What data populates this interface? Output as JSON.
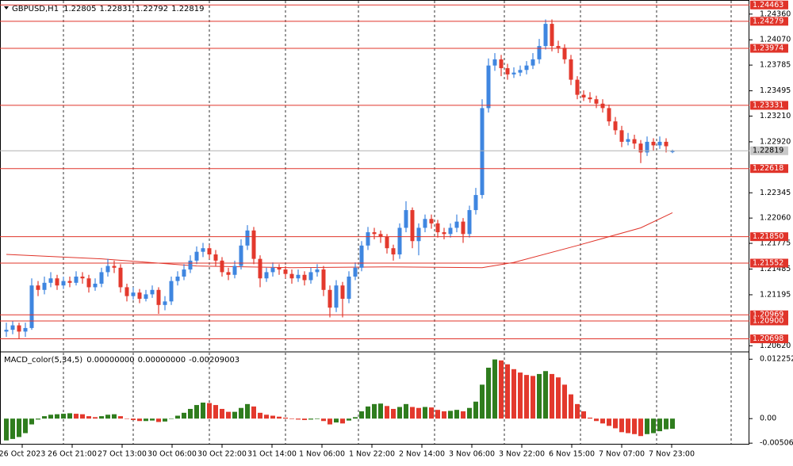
{
  "chart_data": [
    {
      "type": "candlestick",
      "symbol": "GBPUSD,H1",
      "up_color": "#3f86e0",
      "down_color": "#e3392d",
      "xlim": [
        -1,
        117.125
      ],
      "ylim": [
        1.2056,
        1.2451
      ],
      "xticks": [
        {
          "value": 2.5,
          "label": "26 Oct 2023"
        },
        {
          "value": 10.375,
          "label": "26 Oct 21:00"
        },
        {
          "value": 18.25,
          "label": "27 Oct 13:00"
        },
        {
          "value": 26.125,
          "label": "30 Oct 06:00"
        },
        {
          "value": 34,
          "label": "30 Oct 22:00"
        },
        {
          "value": 41.875,
          "label": "31 Oct 14:00"
        },
        {
          "value": 49.75,
          "label": "1 Nov 06:00"
        },
        {
          "value": 57.625,
          "label": "1 Nov 22:00"
        },
        {
          "value": 65.5,
          "label": "2 Nov 14:00"
        },
        {
          "value": 73.375,
          "label": "3 Nov 06:00"
        },
        {
          "value": 81.25,
          "label": "3 Nov 22:00"
        },
        {
          "value": 89.125,
          "label": "6 Nov 15:00"
        },
        {
          "value": 97,
          "label": "7 Nov 07:00"
        },
        {
          "value": 104.875,
          "label": "7 Nov 23:00"
        }
      ],
      "xgrid": [
        9,
        20,
        32,
        44,
        55.5,
        67.5,
        78.5,
        90.5,
        102.5,
        114.25
      ],
      "yticks": [
        {
          "value": 1.2436,
          "label": "1.24360"
        },
        {
          "value": 1.2407,
          "label": "1.24070"
        },
        1.23785,
        1.23495,
        {
          "value": 1.2321,
          "label": "1.23210"
        },
        {
          "value": 1.2292,
          "label": "1.22920"
        },
        1.22345,
        {
          "value": 1.2206,
          "label": "1.22060"
        },
        1.21775,
        1.21485,
        1.21195,
        {
          "value": 1.2062,
          "label": "1.20620"
        }
      ],
      "levels": [
        1.24463,
        1.24279,
        1.23974,
        1.23331,
        1.22618,
        {
          "value": 1.2185,
          "label": "1.21850"
        },
        1.21552,
        1.20969,
        {
          "value": 1.209,
          "label": "1.20900"
        },
        1.20698
      ],
      "level_color": "#e0342a",
      "series": [
        {
          "ohlc": [
            [
              1.2078,
              1.2088,
              1.2072,
              1.208
            ],
            [
              1.208,
              1.209,
              1.2075,
              1.2085
            ],
            [
              1.2085,
              1.2088,
              1.207,
              1.2078
            ],
            [
              1.2078,
              1.2088,
              1.2072,
              1.2082
            ],
            [
              1.2082,
              1.2138,
              1.208,
              1.213
            ],
            [
              1.213,
              1.2135,
              1.2118,
              1.2125
            ],
            [
              1.2125,
              1.214,
              1.212,
              1.2133
            ],
            [
              1.2133,
              1.2145,
              1.2128,
              1.2138
            ],
            [
              1.2138,
              1.2142,
              1.2125,
              1.213
            ],
            [
              1.213,
              1.214,
              1.2126,
              1.2135
            ],
            [
              1.2135,
              1.214,
              1.2128,
              1.2133
            ],
            [
              1.2133,
              1.2146,
              1.213,
              1.214
            ],
            [
              1.214,
              1.2145,
              1.2132,
              1.2138
            ],
            [
              1.2138,
              1.2142,
              1.2122,
              1.2128
            ],
            [
              1.2128,
              1.2138,
              1.2124,
              1.2132
            ],
            [
              1.2132,
              1.215,
              1.2128,
              1.2145
            ],
            [
              1.2145,
              1.216,
              1.214,
              1.2152
            ],
            [
              1.2152,
              1.2158,
              1.2144,
              1.215
            ],
            [
              1.215,
              1.2154,
              1.2122,
              1.2128
            ],
            [
              1.2128,
              1.2132,
              1.2112,
              1.2118
            ],
            [
              1.2118,
              1.2128,
              1.2114,
              1.2122
            ],
            [
              1.2122,
              1.2126,
              1.211,
              1.2115
            ],
            [
              1.2115,
              1.2125,
              1.2112,
              1.212
            ],
            [
              1.212,
              1.213,
              1.2116,
              1.2125
            ],
            [
              1.2125,
              1.2128,
              1.2098,
              1.2108
            ],
            [
              1.2108,
              1.2118,
              1.2102,
              1.2112
            ],
            [
              1.2112,
              1.214,
              1.2108,
              1.2135
            ],
            [
              1.2135,
              1.2146,
              1.213,
              1.214
            ],
            [
              1.214,
              1.2154,
              1.2136,
              1.2148
            ],
            [
              1.2148,
              1.2164,
              1.2144,
              1.2158
            ],
            [
              1.2158,
              1.2174,
              1.2154,
              1.2168
            ],
            [
              1.2168,
              1.2178,
              1.2162,
              1.2172
            ],
            [
              1.2172,
              1.2176,
              1.216,
              1.2165
            ],
            [
              1.2165,
              1.217,
              1.2152,
              1.2158
            ],
            [
              1.2158,
              1.2162,
              1.214,
              1.2145
            ],
            [
              1.2145,
              1.215,
              1.2136,
              1.2142
            ],
            [
              1.2142,
              1.2158,
              1.2138,
              1.2152
            ],
            [
              1.2152,
              1.2182,
              1.2148,
              1.2175
            ],
            [
              1.2175,
              1.2198,
              1.217,
              1.2192
            ],
            [
              1.2192,
              1.2196,
              1.2154,
              1.216
            ],
            [
              1.216,
              1.2164,
              1.2128,
              1.2138
            ],
            [
              1.2138,
              1.215,
              1.2134,
              1.2145
            ],
            [
              1.2145,
              1.2156,
              1.214,
              1.215
            ],
            [
              1.215,
              1.2154,
              1.2142,
              1.2148
            ],
            [
              1.2148,
              1.2152,
              1.2138,
              1.2143
            ],
            [
              1.2143,
              1.2148,
              1.2132,
              1.2138
            ],
            [
              1.2138,
              1.2148,
              1.2134,
              1.2142
            ],
            [
              1.2142,
              1.2146,
              1.213,
              1.2136
            ],
            [
              1.2136,
              1.215,
              1.2132,
              1.2145
            ],
            [
              1.2145,
              1.2154,
              1.214,
              1.2148
            ],
            [
              1.2148,
              1.2152,
              1.2118,
              1.2125
            ],
            [
              1.2125,
              1.213,
              1.2094,
              1.2105
            ],
            [
              1.2105,
              1.2136,
              1.21,
              1.213
            ],
            [
              1.213,
              1.2134,
              1.2094,
              1.2115
            ],
            [
              1.2115,
              1.2146,
              1.211,
              1.214
            ],
            [
              1.214,
              1.2156,
              1.2136,
              1.215
            ],
            [
              1.215,
              1.218,
              1.2146,
              1.2175
            ],
            [
              1.2175,
              1.2196,
              1.217,
              1.219
            ],
            [
              1.219,
              1.2195,
              1.2182,
              1.2188
            ],
            [
              1.2188,
              1.2192,
              1.2178,
              1.2185
            ],
            [
              1.2185,
              1.2188,
              1.2166,
              1.2172
            ],
            [
              1.2172,
              1.2176,
              1.2158,
              1.2165
            ],
            [
              1.2165,
              1.22,
              1.216,
              1.2195
            ],
            [
              1.2195,
              1.2225,
              1.219,
              1.2215
            ],
            [
              1.2215,
              1.2218,
              1.2172,
              1.218
            ],
            [
              1.218,
              1.22,
              1.2164,
              1.2195
            ],
            [
              1.2195,
              1.221,
              1.219,
              1.2205
            ],
            [
              1.2205,
              1.221,
              1.2194,
              1.22
            ],
            [
              1.22,
              1.2204,
              1.2184,
              1.219
            ],
            [
              1.219,
              1.2195,
              1.2182,
              1.2188
            ],
            [
              1.2188,
              1.22,
              1.2184,
              1.2195
            ],
            [
              1.2195,
              1.221,
              1.219,
              1.2202
            ],
            [
              1.2202,
              1.2206,
              1.2178,
              1.2188
            ],
            [
              1.2188,
              1.222,
              1.2184,
              1.2215
            ],
            [
              1.2215,
              1.224,
              1.221,
              1.2232
            ],
            [
              1.2232,
              1.234,
              1.2228,
              1.233
            ],
            [
              1.233,
              1.2386,
              1.2325,
              1.2378
            ],
            [
              1.2378,
              1.2392,
              1.2372,
              1.2385
            ],
            [
              1.2385,
              1.239,
              1.2366,
              1.2375
            ],
            [
              1.2375,
              1.238,
              1.2362,
              1.2368
            ],
            [
              1.2368,
              1.2376,
              1.2364,
              1.237
            ],
            [
              1.237,
              1.2378,
              1.2366,
              1.2373
            ],
            [
              1.2373,
              1.2383,
              1.2368,
              1.2378
            ],
            [
              1.2378,
              1.2392,
              1.2374,
              1.2385
            ],
            [
              1.2385,
              1.2408,
              1.238,
              1.24
            ],
            [
              1.24,
              1.243,
              1.2396,
              1.2425
            ],
            [
              1.2425,
              1.243,
              1.2394,
              1.24
            ],
            [
              1.24,
              1.2406,
              1.2392,
              1.2398
            ],
            [
              1.2398,
              1.2402,
              1.238,
              1.2385
            ],
            [
              1.2385,
              1.239,
              1.2356,
              1.2362
            ],
            [
              1.2362,
              1.2366,
              1.234,
              1.2345
            ],
            [
              1.2345,
              1.235,
              1.2338,
              1.2342
            ],
            [
              1.2342,
              1.2348,
              1.2336,
              1.234
            ],
            [
              1.234,
              1.2344,
              1.233,
              1.2335
            ],
            [
              1.2335,
              1.234,
              1.2325,
              1.233
            ],
            [
              1.233,
              1.2334,
              1.231,
              1.2315
            ],
            [
              1.2315,
              1.232,
              1.23,
              1.2305
            ],
            [
              1.2305,
              1.231,
              1.2286,
              1.2292
            ],
            [
              1.2292,
              1.2302,
              1.2288,
              1.2295
            ],
            [
              1.2295,
              1.23,
              1.2284,
              1.229
            ],
            [
              1.229,
              1.2294,
              1.2268,
              1.228
            ],
            [
              1.228,
              1.2298,
              1.2276,
              1.2292
            ],
            [
              1.2292,
              1.2296,
              1.2282,
              1.2288
            ],
            [
              1.2288,
              1.2298,
              1.2284,
              1.2292
            ],
            [
              1.2292,
              1.2296,
              1.228,
              1.2287
            ],
            [
              1.22805,
              1.22831,
              1.22792,
              1.22819
            ]
          ]
        },
        {
          "type": "line",
          "color": "#e0342a",
          "x": [
            0,
            15,
            30,
            45,
            60,
            75,
            80,
            90,
            100,
            105
          ],
          "values": [
            1.2165,
            1.216,
            1.2152,
            1.215,
            1.2151,
            1.215,
            1.2156,
            1.2175,
            1.2195,
            1.2212
          ]
        }
      ]
    },
    {
      "type": "bar",
      "title": "MACD_color(5,34,5)",
      "readout": [
        {
          "value": 0,
          "label": "0.00000000"
        },
        {
          "value": 0,
          "label": "0.00000000"
        },
        -0.00209003
      ],
      "up_color": "#2f7d1e",
      "down_color": "#e3392d",
      "ylim": [
        -0.0052,
        0.0136
      ],
      "yticks": [
        0.0122521,
        {
          "value": 0,
          "label": "0.00"
        },
        -0.0050649
      ],
      "values": [
        -0.0045,
        -0.0042,
        -0.0038,
        -0.003,
        -0.0012,
        -0.0002,
        0.0005,
        0.0008,
        0.0009,
        0.001,
        0.0011,
        0.001,
        0.0009,
        0.0005,
        0.0003,
        0.0005,
        0.0008,
        0.0009,
        0.0005,
        0,
        -0.0003,
        -0.0005,
        -0.0005,
        -0.0004,
        -0.0007,
        -0.0006,
        0,
        0.0006,
        0.0012,
        0.002,
        0.0028,
        0.0033,
        0.0032,
        0.0028,
        0.002,
        0.0014,
        0.0014,
        0.0022,
        0.003,
        0.0025,
        0.0012,
        0.0008,
        0.0006,
        0.0004,
        0.0002,
        -0.0001,
        -0.0002,
        -0.0003,
        -0.0002,
        -0.0001,
        -0.0005,
        -0.0012,
        -0.0008,
        -0.001,
        -0.0004,
        0.0003,
        0.0015,
        0.0025,
        0.003,
        0.0031,
        0.0026,
        0.002,
        0.0024,
        0.003,
        0.0024,
        0.0022,
        0.0024,
        0.0023,
        0.0018,
        0.0015,
        0.0016,
        0.0018,
        0.0015,
        0.0022,
        0.0035,
        0.007,
        0.0105,
        0.0122,
        0.012,
        0.0112,
        0.0102,
        0.0095,
        0.009,
        0.0088,
        0.0092,
        0.0098,
        0.0092,
        0.0085,
        0.007,
        0.005,
        0.003,
        0.0015,
        0.0002,
        -0.0005,
        -0.001,
        -0.0015,
        -0.002,
        -0.0028,
        -0.003,
        -0.0032,
        -0.0036,
        -0.0032,
        -0.003,
        -0.0026,
        -0.0022,
        -0.00209003
      ]
    }
  ]
}
